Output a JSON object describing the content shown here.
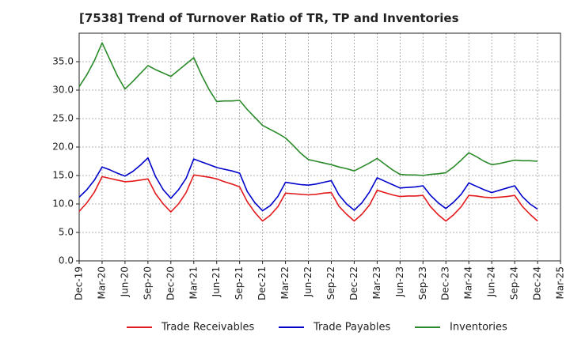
{
  "chart_data": {
    "type": "line",
    "title": "[7538]  Trend of Turnover Ratio of TR, TP and Inventories",
    "xlabel": "",
    "ylabel": "",
    "ylim": [
      0,
      40
    ],
    "yticks": [
      0.0,
      5.0,
      10.0,
      15.0,
      20.0,
      25.0,
      30.0,
      35.0
    ],
    "ytick_labels": [
      "0.0",
      "5.0",
      "10.0",
      "15.0",
      "20.0",
      "25.0",
      "30.0",
      "35.0"
    ],
    "xtick_labels": [
      "Dec-19",
      "Mar-20",
      "Jun-20",
      "Sep-20",
      "Dec-20",
      "Mar-21",
      "Jun-21",
      "Sep-21",
      "Dec-21",
      "Mar-22",
      "Jun-22",
      "Sep-22",
      "Dec-22",
      "Mar-23",
      "Jun-23",
      "Sep-23",
      "Dec-23",
      "Mar-24",
      "Jun-24",
      "Sep-24",
      "Dec-24",
      "Mar-25"
    ],
    "x": [
      "Dec-19",
      "Jan-20",
      "Feb-20",
      "Mar-20",
      "Apr-20",
      "May-20",
      "Jun-20",
      "Jul-20",
      "Aug-20",
      "Sep-20",
      "Oct-20",
      "Nov-20",
      "Dec-20",
      "Jan-21",
      "Feb-21",
      "Mar-21",
      "Apr-21",
      "May-21",
      "Jun-21",
      "Jul-21",
      "Aug-21",
      "Sep-21",
      "Oct-21",
      "Nov-21",
      "Dec-21",
      "Jan-22",
      "Feb-22",
      "Mar-22",
      "Apr-22",
      "May-22",
      "Jun-22",
      "Jul-22",
      "Aug-22",
      "Sep-22",
      "Oct-22",
      "Nov-22",
      "Dec-22",
      "Jan-23",
      "Feb-23",
      "Mar-23",
      "Apr-23",
      "May-23",
      "Jun-23",
      "Jul-23",
      "Aug-23",
      "Sep-23",
      "Oct-23",
      "Nov-23",
      "Dec-23",
      "Jan-24",
      "Feb-24",
      "Mar-24",
      "Apr-24",
      "May-24",
      "Jun-24",
      "Jul-24",
      "Aug-24",
      "Sep-24",
      "Oct-24",
      "Nov-24",
      "Dec-24"
    ],
    "series": [
      {
        "name": "Trade Receivables",
        "color": "#e31a1c",
        "values": [
          8.7,
          10.2,
          12.1,
          14.8,
          14.5,
          14.2,
          13.9,
          14.0,
          14.2,
          14.4,
          11.8,
          10.0,
          8.6,
          10.0,
          12.0,
          15.1,
          14.9,
          14.7,
          14.4,
          13.9,
          13.5,
          13.0,
          10.4,
          8.5,
          7.0,
          8.0,
          9.5,
          11.9,
          11.8,
          11.7,
          11.6,
          11.7,
          11.9,
          12.0,
          9.6,
          8.2,
          7.0,
          8.2,
          9.8,
          12.4,
          12.0,
          11.6,
          11.3,
          11.4,
          11.4,
          11.5,
          9.5,
          8.1,
          7.0,
          8.1,
          9.5,
          11.5,
          11.4,
          11.2,
          11.1,
          11.2,
          11.3,
          11.5,
          9.6,
          8.2,
          7.0
        ]
      },
      {
        "name": "Trade Payables",
        "color": "#0000cc",
        "values": [
          11.2,
          12.5,
          14.2,
          16.5,
          16.0,
          15.4,
          14.9,
          15.7,
          16.8,
          18.1,
          14.8,
          12.5,
          11.0,
          12.5,
          14.5,
          17.9,
          17.4,
          16.9,
          16.4,
          16.1,
          15.8,
          15.4,
          12.2,
          10.2,
          8.8,
          9.7,
          11.3,
          13.8,
          13.6,
          13.4,
          13.3,
          13.5,
          13.8,
          14.1,
          11.6,
          10.0,
          8.9,
          10.2,
          12.1,
          14.6,
          14.0,
          13.4,
          12.8,
          12.9,
          13.0,
          13.2,
          11.5,
          10.2,
          9.2,
          10.3,
          11.7,
          13.7,
          13.1,
          12.5,
          12.0,
          12.4,
          12.8,
          13.2,
          11.3,
          10.0,
          9.1
        ]
      },
      {
        "name": "Inventories",
        "color": "#2a8a2a",
        "values": [
          30.6,
          32.7,
          35.2,
          38.3,
          35.4,
          32.5,
          30.2,
          31.5,
          32.9,
          34.3,
          33.6,
          33.0,
          32.4,
          33.5,
          34.6,
          35.7,
          32.7,
          30.1,
          28.0,
          28.1,
          28.1,
          28.2,
          26.6,
          25.2,
          23.8,
          23.1,
          22.4,
          21.6,
          20.3,
          18.9,
          17.8,
          17.5,
          17.2,
          16.9,
          16.5,
          16.2,
          15.8,
          16.5,
          17.2,
          18.0,
          17.0,
          16.0,
          15.2,
          15.1,
          15.1,
          15.0,
          15.2,
          15.3,
          15.5,
          16.5,
          17.7,
          19.0,
          18.3,
          17.5,
          16.9,
          17.1,
          17.4,
          17.7,
          17.6,
          17.6,
          17.5
        ]
      }
    ],
    "legend": {
      "position": "bottom",
      "entries": [
        "Trade Receivables",
        "Trade Payables",
        "Inventories"
      ]
    },
    "grid": true
  }
}
